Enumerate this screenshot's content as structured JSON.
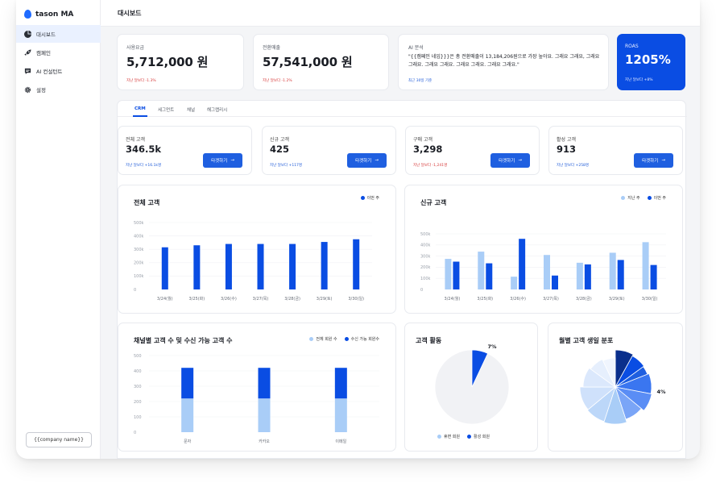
{
  "app": {
    "name": "tason MA"
  },
  "sidebar": {
    "items": [
      {
        "label": "대시보드",
        "icon": "dashboard-icon",
        "active": true
      },
      {
        "label": "캠페인",
        "icon": "rocket-icon",
        "active": false
      },
      {
        "label": "AI 컨설턴트",
        "icon": "chat-icon",
        "active": false
      },
      {
        "label": "설정",
        "icon": "gear-icon",
        "active": false
      }
    ],
    "company_button": "{{company name}}"
  },
  "header": {
    "title": "대시보드"
  },
  "kpis": [
    {
      "label": "사용요금",
      "value": "5,712,000 원",
      "delta": "지난 달보다 -1.3%"
    },
    {
      "label": "전환매출",
      "value": "57,541,000 원",
      "delta": "지난 달보다 -1.2%"
    }
  ],
  "ai_report": {
    "label": "AI 분석",
    "text": "\"{{캠페인 네임}}}은 총 전환매출이 13,184,206원으로 가장 높아요. 그래요 그래요, 그래요 그래요. 그래요 그래요. 그래요 그래요. 그래요 그래요.\"",
    "sub": "최근 30일 기준"
  },
  "roas": {
    "label": "ROAS",
    "value": "1205%",
    "delta": "지난 달보다 +8%"
  },
  "tabs": [
    "CRM",
    "세그먼트",
    "채널",
    "해그랩리시"
  ],
  "stats": [
    {
      "label": "전체 고객",
      "value": "346.5k",
      "delta": "지난 달보다 +16.1k명",
      "negative": false,
      "button": "타겟하기"
    },
    {
      "label": "신규 고객",
      "value": "425",
      "delta": "지난 달보다 +117명",
      "negative": false,
      "button": "타겟하기"
    },
    {
      "label": "구매 고객",
      "value": "3,298",
      "delta": "지난 달보다 -1,241명",
      "negative": true,
      "button": "타겟하기"
    },
    {
      "label": "활성 고객",
      "value": "913",
      "delta": "지난 달보다 +258명",
      "negative": false,
      "button": "타겟하기"
    }
  ],
  "colors": {
    "primary": "#0a4de3",
    "light": "#a9cdf7",
    "negative": "#d63a3a",
    "positive": "#1f5bd8"
  },
  "chart_data": [
    {
      "id": "total-customers",
      "type": "bar",
      "title": "전체 고객",
      "categories": [
        "3/24(월)",
        "3/25(화)",
        "3/26(수)",
        "3/27(목)",
        "3/28(금)",
        "3/29(토)",
        "3/30(일)"
      ],
      "series": [
        {
          "name": "이번 주",
          "values": [
            315000,
            330000,
            340000,
            340000,
            340000,
            355000,
            375000
          ],
          "color": "#0a4de3"
        }
      ],
      "yticks": [
        "500k",
        "400k",
        "300k",
        "200k",
        "100k",
        "0"
      ],
      "ylim": [
        0,
        500000
      ]
    },
    {
      "id": "new-customers",
      "type": "bar",
      "title": "신규 고객",
      "categories": [
        "3/24(월)",
        "3/25(화)",
        "3/26(수)",
        "3/27(목)",
        "3/28(금)",
        "3/29(토)",
        "3/30(일)"
      ],
      "series": [
        {
          "name": "지난 주",
          "values": [
            275000,
            340000,
            115000,
            310000,
            240000,
            330000,
            425000
          ],
          "color": "#a9cdf7"
        },
        {
          "name": "이번 주",
          "values": [
            250000,
            235000,
            455000,
            125000,
            225000,
            265000,
            220000
          ],
          "color": "#0a4de3"
        }
      ],
      "yticks": [
        "500k",
        "400k",
        "300k",
        "200k",
        "100k",
        "0"
      ],
      "ylim": [
        0,
        500000
      ]
    },
    {
      "id": "channel-customers",
      "type": "bar",
      "title": "채널별 고객 수 및 수신 가능 고객 수",
      "categories": [
        "문자",
        "카카오",
        "이메일"
      ],
      "series": [
        {
          "name": "전체 회원 수",
          "values": [
            220,
            220,
            220
          ],
          "color": "#a9cdf7"
        },
        {
          "name": "수신 가능 회원수",
          "values": [
            200,
            200,
            200
          ],
          "color": "#0a4de3"
        }
      ],
      "stacked": true,
      "yticks": [
        "500",
        "400",
        "300",
        "200",
        "100",
        "0"
      ],
      "ylim": [
        0,
        500
      ]
    },
    {
      "id": "customer-activity",
      "type": "pie",
      "title": "고객 활동",
      "labels": [
        "휴면 회원",
        "활성 회원"
      ],
      "values": [
        93,
        7
      ],
      "colors": [
        "#f1f2f5",
        "#0a4de3"
      ],
      "annotation": "7%"
    },
    {
      "id": "birth-month",
      "type": "pie",
      "title": "월별 고객 생일 분포",
      "values": [
        8,
        7,
        4,
        9,
        8,
        9,
        10,
        9,
        11,
        10,
        8,
        7
      ],
      "colors": [
        "#0a2f8c",
        "#0a4de3",
        "#1f5fe0",
        "#3a76f0",
        "#5a8df5",
        "#7aa5f7",
        "#a9cdf7",
        "#bcd7f9",
        "#cfe1fb",
        "#dbe8fc",
        "#e6effd",
        "#f0f5fe"
      ],
      "annotation": "4%"
    }
  ]
}
